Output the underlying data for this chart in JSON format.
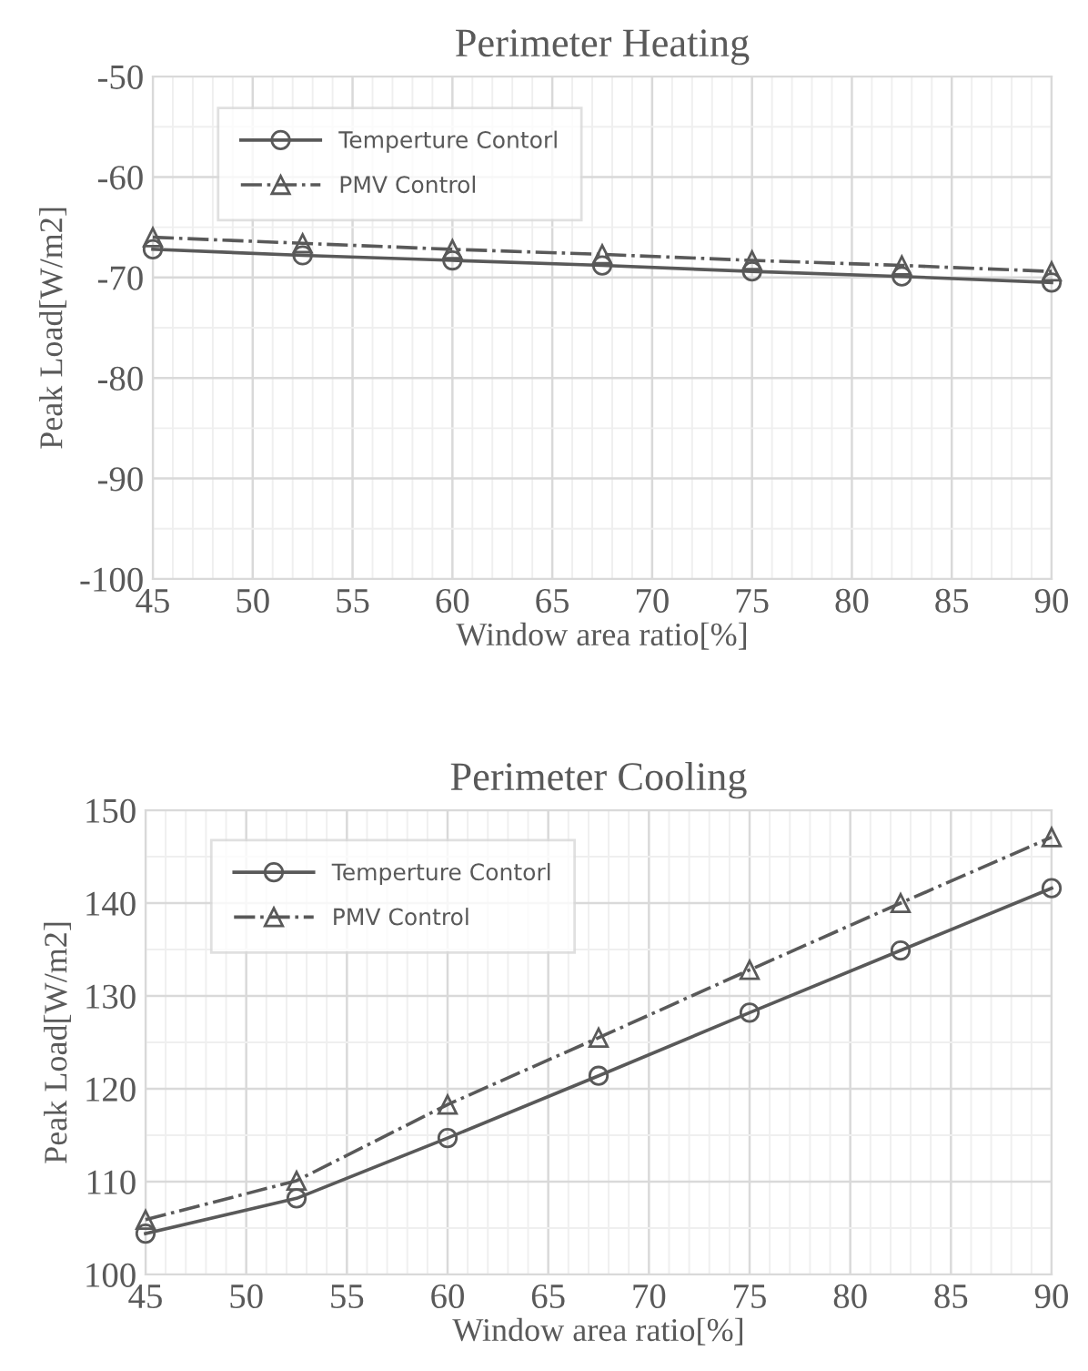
{
  "chart_data": [
    {
      "type": "line",
      "title": "Perimeter Heating",
      "xlabel": "Window area ratio[%]",
      "ylabel": "Peak Load[W/m2]",
      "x": [
        45,
        52.5,
        60,
        67.5,
        75,
        82.5,
        90
      ],
      "xlim": [
        45,
        90
      ],
      "xticks": [
        45,
        50,
        55,
        60,
        65,
        70,
        75,
        80,
        85,
        90
      ],
      "ylim": [
        -100,
        -50
      ],
      "yticks": [
        -100,
        -90,
        -80,
        -70,
        -60,
        -50
      ],
      "grid": true,
      "legend": "top left",
      "series": [
        {
          "name": "Temperture Contorl",
          "color": "#595959",
          "marker": "circle",
          "line_style": "solid",
          "values": [
            -67.2,
            -67.8,
            -68.3,
            -68.8,
            -69.4,
            -69.9,
            -70.5
          ]
        },
        {
          "name": "PMV Control",
          "color": "#595959",
          "marker": "triangle",
          "line_style": "dashdot",
          "values": [
            -66.0,
            -66.6,
            -67.2,
            -67.7,
            -68.3,
            -68.8,
            -69.4
          ]
        }
      ]
    },
    {
      "type": "line",
      "title": "Perimeter Cooling",
      "xlabel": "Window area ratio[%]",
      "ylabel": "Peak Load[W/m2]",
      "x": [
        45,
        52.5,
        60,
        67.5,
        75,
        82.5,
        90
      ],
      "xlim": [
        45,
        90
      ],
      "xticks": [
        45,
        50,
        55,
        60,
        65,
        70,
        75,
        80,
        85,
        90
      ],
      "ylim": [
        100,
        150
      ],
      "yticks": [
        100,
        110,
        120,
        130,
        140,
        150
      ],
      "grid": true,
      "legend": "top left",
      "series": [
        {
          "name": "Temperture Contorl",
          "color": "#595959",
          "marker": "circle",
          "line_style": "solid",
          "values": [
            104.4,
            108.2,
            114.7,
            121.4,
            128.2,
            134.9,
            141.6
          ]
        },
        {
          "name": "PMV Control",
          "color": "#595959",
          "marker": "triangle",
          "line_style": "dashdot",
          "values": [
            105.9,
            110.1,
            118.3,
            125.5,
            132.8,
            140.0,
            147.1
          ]
        }
      ]
    }
  ]
}
